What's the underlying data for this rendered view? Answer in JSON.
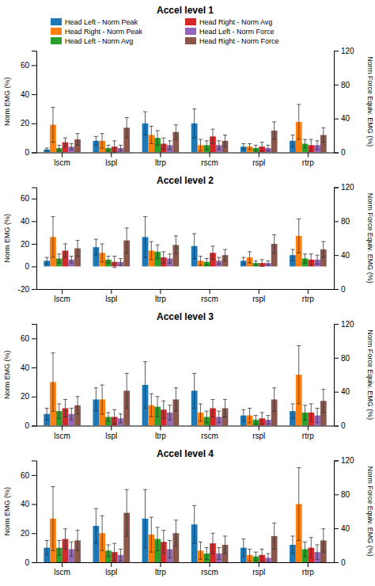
{
  "chart_data": [
    {
      "type": "bar",
      "title": "Accel level 1",
      "categories": [
        "lscm",
        "lspl",
        "ltrp",
        "rscm",
        "rspl",
        "rtrp"
      ],
      "ylabel": "Norm EMG (%)",
      "y2label": "Norm Force Equiv. EMG (%)",
      "ylim": [
        0,
        70
      ],
      "yticks": [
        0,
        20,
        40,
        60
      ],
      "y2lim": [
        0,
        120
      ],
      "y2ticks": [
        0,
        40,
        80,
        120
      ],
      "grid": false,
      "legend": "top",
      "series": [
        {
          "name": "Head Left - Norm Peak",
          "values": [
            2,
            8,
            20,
            20,
            4,
            8
          ],
          "errors": [
            1,
            3,
            8,
            10,
            2,
            4
          ]
        },
        {
          "name": "Head Right - Norm Peak",
          "values": [
            19,
            8,
            12,
            5,
            4,
            21
          ],
          "errors": [
            12,
            5,
            6,
            4,
            2,
            12
          ]
        },
        {
          "name": "Head Left - Norm Avg",
          "values": [
            3,
            3,
            10,
            5,
            3,
            6
          ],
          "errors": [
            2,
            2,
            5,
            3,
            2,
            3
          ]
        },
        {
          "name": "Head Right - Norm Avg",
          "values": [
            7,
            4,
            6,
            11,
            4,
            5
          ],
          "errors": [
            3,
            4,
            4,
            5,
            3,
            4
          ]
        },
        {
          "name": "Head Left - Norm Force",
          "values": [
            4,
            3,
            5,
            5,
            3,
            5
          ],
          "errors": [
            2,
            2,
            3,
            3,
            2,
            3
          ]
        },
        {
          "name": "Head Right - Norm Force",
          "values": [
            9,
            17,
            14,
            8,
            15,
            12
          ],
          "errors": [
            4,
            7,
            5,
            4,
            6,
            5
          ]
        }
      ]
    },
    {
      "type": "bar",
      "title": "Accel level 2",
      "categories": [
        "lscm",
        "lspl",
        "ltrp",
        "rscm",
        "rspl",
        "rtrp"
      ],
      "ylabel": "Norm EMG (%)",
      "y2label": "Norm Force Equiv. EMG (%)",
      "ylim": [
        -20,
        70
      ],
      "yticks": [
        -20,
        0,
        20,
        40,
        60
      ],
      "y2lim": [
        0,
        120
      ],
      "y2ticks": [
        0,
        40,
        80,
        120
      ],
      "grid": false,
      "series": [
        {
          "values": [
            5,
            17,
            26,
            18,
            5,
            10
          ],
          "errors": [
            3,
            7,
            18,
            11,
            3,
            5
          ]
        },
        {
          "values": [
            26,
            12,
            14,
            5,
            8,
            27
          ],
          "errors": [
            18,
            8,
            8,
            4,
            5,
            15
          ]
        },
        {
          "values": [
            7,
            6,
            13,
            4,
            3,
            7
          ],
          "errors": [
            4,
            3,
            6,
            3,
            2,
            4
          ]
        },
        {
          "values": [
            14,
            4,
            8,
            12,
            3,
            6
          ],
          "errors": [
            6,
            5,
            5,
            6,
            3,
            5
          ]
        },
        {
          "values": [
            6,
            4,
            7,
            5,
            3,
            6
          ],
          "errors": [
            3,
            3,
            4,
            3,
            2,
            4
          ]
        },
        {
          "values": [
            16,
            23,
            19,
            10,
            20,
            15
          ],
          "errors": [
            7,
            11,
            8,
            5,
            8,
            7
          ]
        }
      ]
    },
    {
      "type": "bar",
      "title": "Accel level 3",
      "categories": [
        "lscm",
        "lspl",
        "ltrp",
        "rscm",
        "rspl",
        "rtrp"
      ],
      "ylabel": "Norm EMG (%)",
      "y2label": "Norm Force Equiv. EMG (%)",
      "ylim": [
        0,
        70
      ],
      "yticks": [
        0,
        20,
        40,
        60
      ],
      "y2lim": [
        0,
        120
      ],
      "y2ticks": [
        0,
        40,
        80,
        120
      ],
      "grid": false,
      "series": [
        {
          "values": [
            8,
            18,
            28,
            24,
            7,
            10
          ],
          "errors": [
            4,
            8,
            16,
            12,
            4,
            5
          ]
        },
        {
          "values": [
            30,
            18,
            14,
            9,
            7,
            35
          ],
          "errors": [
            20,
            10,
            8,
            6,
            5,
            20
          ]
        },
        {
          "values": [
            10,
            6,
            13,
            6,
            4,
            9
          ],
          "errors": [
            5,
            3,
            7,
            4,
            3,
            5
          ]
        },
        {
          "values": [
            12,
            6,
            11,
            12,
            5,
            9
          ],
          "errors": [
            6,
            5,
            6,
            6,
            4,
            6
          ]
        },
        {
          "values": [
            8,
            5,
            9,
            6,
            4,
            7
          ],
          "errors": [
            4,
            3,
            5,
            4,
            3,
            5
          ]
        },
        {
          "values": [
            14,
            24,
            18,
            12,
            18,
            17
          ],
          "errors": [
            6,
            12,
            8,
            6,
            8,
            8
          ]
        }
      ]
    },
    {
      "type": "bar",
      "title": "Accel level 4",
      "categories": [
        "lscm",
        "lspl",
        "ltrp",
        "rscm",
        "rspl",
        "rtrp"
      ],
      "ylabel": "Norm EMG (%)",
      "y2label": "Norm Force Equiv. EMG (%)",
      "ylim": [
        0,
        70
      ],
      "yticks": [
        0,
        20,
        40,
        60
      ],
      "y2lim": [
        0,
        120
      ],
      "y2ticks": [
        0,
        40,
        80,
        120
      ],
      "grid": false,
      "series": [
        {
          "values": [
            10,
            25,
            30,
            26,
            10,
            12
          ],
          "errors": [
            5,
            12,
            20,
            13,
            6,
            6
          ]
        },
        {
          "values": [
            30,
            20,
            19,
            8,
            5,
            40
          ],
          "errors": [
            22,
            12,
            12,
            6,
            4,
            25
          ]
        },
        {
          "values": [
            10,
            8,
            16,
            6,
            4,
            9
          ],
          "errors": [
            5,
            4,
            8,
            4,
            3,
            5
          ]
        },
        {
          "values": [
            16,
            7,
            14,
            13,
            5,
            10
          ],
          "errors": [
            7,
            6,
            8,
            7,
            4,
            7
          ]
        },
        {
          "values": [
            9,
            5,
            9,
            6,
            3,
            7
          ],
          "errors": [
            5,
            4,
            6,
            4,
            3,
            5
          ]
        },
        {
          "values": [
            15,
            34,
            20,
            12,
            18,
            15
          ],
          "errors": [
            7,
            16,
            9,
            6,
            9,
            8
          ]
        }
      ]
    }
  ]
}
